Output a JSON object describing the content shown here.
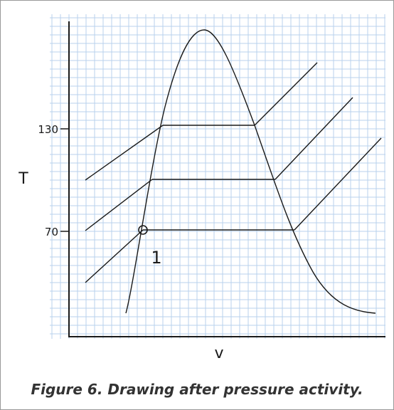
{
  "axes": {
    "y_label": "T",
    "x_label": "v",
    "y_ticks": [
      "130",
      "70"
    ]
  },
  "point_label": "1",
  "caption": "Figure 6. Drawing after pressure activity."
}
